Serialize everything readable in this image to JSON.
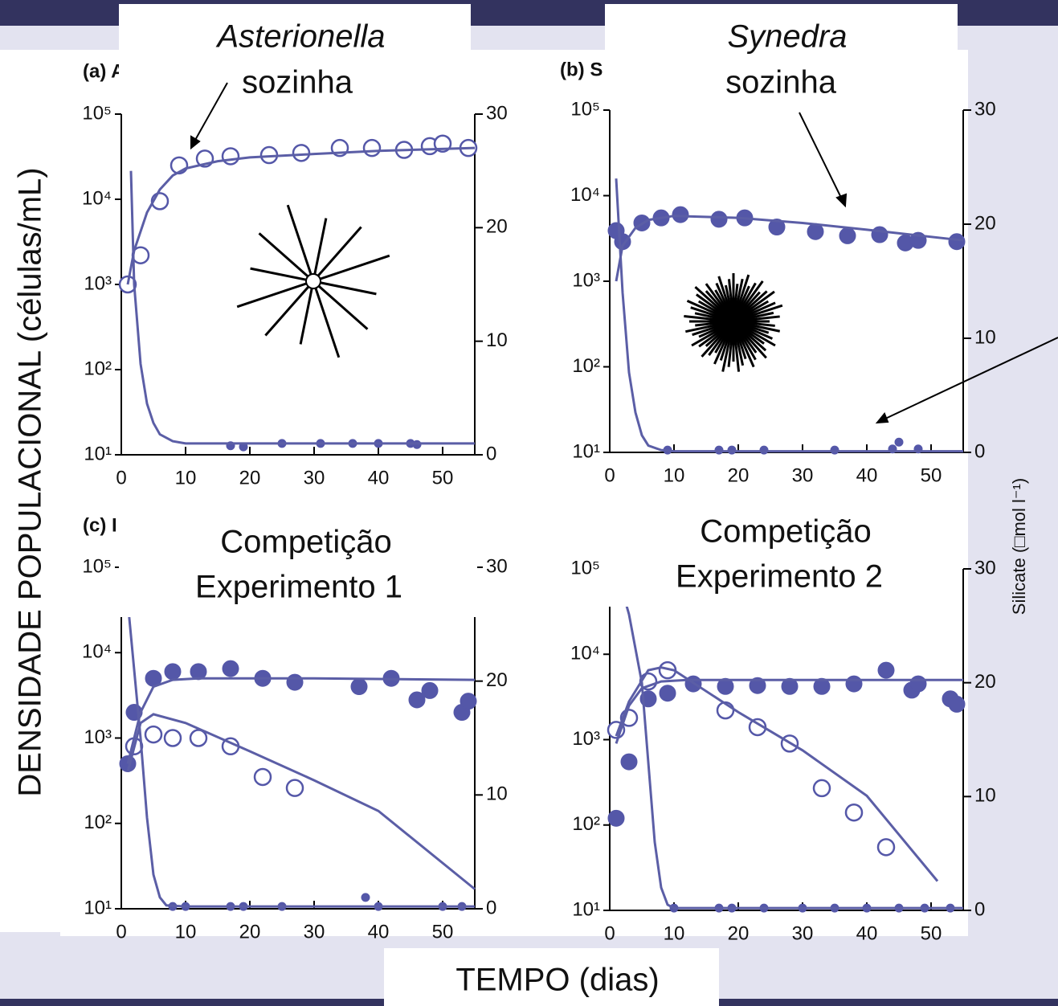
{
  "labels": {
    "y_axis": "DENSIDADE POPULACIONAL (células/mL)",
    "y2_axis": "Silicate (□mol l⁻¹)",
    "x_axis": "TEMPO (dias)"
  },
  "chart_data": [
    {
      "type": "scatter",
      "panel_label": "(a) A",
      "annotation": [
        "Asterionella",
        "sozinha"
      ],
      "log": true,
      "xlim": [
        0,
        55
      ],
      "xticks": [
        0,
        10,
        20,
        30,
        40,
        50
      ],
      "ylim": [
        10,
        100000
      ],
      "yticks": [
        {
          "value": 10,
          "label": "10¹"
        },
        {
          "value": 100,
          "label": "10²"
        },
        {
          "value": 1000,
          "label": "10³"
        },
        {
          "value": 10000,
          "label": "10⁴"
        },
        {
          "value": 100000,
          "label": "10⁵"
        }
      ],
      "y2lim": [
        0,
        30
      ],
      "y2ticks": [
        0,
        10,
        20,
        30
      ],
      "series": [
        {
          "marker": "open",
          "color": "#5457a8",
          "x": [
            1,
            3,
            6,
            9,
            13,
            17,
            23,
            28,
            34,
            39,
            44,
            48,
            50,
            54
          ],
          "values": [
            1000,
            2200,
            9500,
            25000,
            30000,
            32000,
            33000,
            35000,
            40000,
            40000,
            38000,
            42000,
            45000,
            40000
          ]
        },
        {
          "marker": "small",
          "axis": "y2",
          "color": "#5457a8",
          "x": [
            17,
            19,
            25,
            31,
            36,
            40,
            45,
            46
          ],
          "values": [
            0.8,
            0.7,
            1,
            1,
            1,
            1,
            1,
            0.9
          ]
        },
        {
          "marker": "line",
          "color": "#5b5ea6",
          "x": [
            1,
            2,
            4,
            6,
            8,
            10,
            15,
            20,
            30,
            40,
            55
          ],
          "values": [
            1000,
            2500,
            7000,
            13000,
            19000,
            23000,
            28000,
            31000,
            34000,
            37000,
            40000
          ]
        },
        {
          "marker": "line",
          "axis": "y2",
          "color": "#5b5ea6",
          "x": [
            1.5,
            2,
            3,
            4,
            5,
            6,
            8,
            10,
            55
          ],
          "values": [
            25,
            15,
            8,
            4.5,
            2.8,
            1.8,
            1.2,
            1,
            1
          ]
        }
      ]
    },
    {
      "type": "scatter",
      "panel_label": "(b) S",
      "annotation": [
        "Synedra",
        "sozinha"
      ],
      "log": true,
      "xlim": [
        0,
        55
      ],
      "xticks": [
        0,
        10,
        20,
        30,
        40,
        50
      ],
      "ylim": [
        10,
        100000
      ],
      "yticks": [
        {
          "value": 10,
          "label": "10¹"
        },
        {
          "value": 100,
          "label": "10²"
        },
        {
          "value": 1000,
          "label": "10³"
        },
        {
          "value": 10000,
          "label": "10⁴"
        },
        {
          "value": 100000,
          "label": "10⁵"
        }
      ],
      "y2lim": [
        0,
        30
      ],
      "y2ticks": [
        0,
        10,
        20,
        30
      ],
      "series": [
        {
          "marker": "filled",
          "color": "#5457a8",
          "x": [
            1,
            2,
            5,
            8,
            11,
            17,
            21,
            26,
            32,
            37,
            42,
            46,
            48,
            54
          ],
          "values": [
            3900,
            2900,
            4800,
            5500,
            6000,
            5300,
            5500,
            4300,
            3800,
            3400,
            3500,
            2800,
            3000,
            2900
          ]
        },
        {
          "marker": "small",
          "axis": "y2",
          "color": "#5457a8",
          "x": [
            9,
            17,
            19,
            24,
            35,
            44,
            45,
            48
          ],
          "values": [
            0.2,
            0.2,
            0.2,
            0.2,
            0.2,
            0.3,
            0.9,
            0.3
          ]
        },
        {
          "marker": "line",
          "color": "#5b5ea6",
          "x": [
            1,
            2,
            4,
            6,
            10,
            20,
            30,
            40,
            55
          ],
          "values": [
            1000,
            2600,
            4200,
            5200,
            5800,
            5500,
            4800,
            4000,
            3000
          ]
        },
        {
          "marker": "line",
          "axis": "y2",
          "color": "#5b5ea6",
          "x": [
            1,
            2,
            3,
            4,
            5,
            6,
            8,
            10,
            55
          ],
          "values": [
            24,
            14,
            7,
            3.5,
            1.5,
            0.6,
            0.2,
            0.1,
            0.1
          ]
        }
      ]
    },
    {
      "type": "scatter",
      "panel_label": "(c) I",
      "annotation": [
        "Competição",
        "Experimento 1"
      ],
      "log": true,
      "xlim": [
        0,
        55
      ],
      "xticks": [
        0,
        10,
        20,
        30,
        40,
        50
      ],
      "ylim": [
        10,
        100000
      ],
      "yticks": [
        {
          "value": 10,
          "label": "10¹"
        },
        {
          "value": 100,
          "label": "10²"
        },
        {
          "value": 1000,
          "label": "10³"
        },
        {
          "value": 10000,
          "label": "10⁴"
        },
        {
          "value": 100000,
          "label": "10⁵"
        }
      ],
      "y2lim": [
        0,
        30
      ],
      "y2ticks": [
        0,
        10,
        20,
        30
      ],
      "series": [
        {
          "marker": "filled",
          "color": "#5457a8",
          "x": [
            1,
            2,
            5,
            8,
            12,
            17,
            22,
            27,
            37,
            42,
            46,
            48,
            53,
            54
          ],
          "values": [
            500,
            2000,
            5000,
            6000,
            6000,
            6500,
            5000,
            4500,
            4000,
            5000,
            2800,
            3600,
            2000,
            2700
          ]
        },
        {
          "marker": "open",
          "color": "#5457a8",
          "x": [
            2,
            5,
            8,
            12,
            17,
            22,
            27
          ],
          "values": [
            800,
            1100,
            1000,
            1000,
            800,
            350,
            260
          ]
        },
        {
          "marker": "small",
          "axis": "y2",
          "color": "#5457a8",
          "x": [
            8,
            10,
            17,
            19,
            25,
            38,
            40,
            50,
            53
          ],
          "values": [
            0.2,
            0.2,
            0.2,
            0.2,
            0.2,
            1,
            0.2,
            0.2,
            0.2
          ]
        },
        {
          "marker": "line",
          "color": "#5b5ea6",
          "x": [
            1,
            3,
            5,
            8,
            12,
            20,
            30,
            55
          ],
          "values": [
            500,
            2000,
            4000,
            4800,
            5000,
            5000,
            5000,
            4800
          ]
        },
        {
          "marker": "line",
          "color": "#5b5ea6",
          "x": [
            1,
            3,
            5,
            10,
            20,
            30,
            40,
            55
          ],
          "values": [
            400,
            1500,
            1900,
            1500,
            700,
            320,
            140,
            17
          ]
        },
        {
          "marker": "line",
          "axis": "y2",
          "color": "#5b5ea6",
          "x": [
            1,
            3,
            4,
            5,
            6,
            7,
            10,
            55
          ],
          "values": [
            27,
            15,
            8,
            3,
            1,
            0.3,
            0.2,
            0.2
          ]
        }
      ]
    },
    {
      "type": "scatter",
      "annotation": [
        "Competição",
        "Experimento 2"
      ],
      "log": true,
      "xlim": [
        0,
        55
      ],
      "xticks": [
        0,
        10,
        20,
        30,
        40,
        50
      ],
      "ylim": [
        10,
        100000
      ],
      "yticks": [
        {
          "value": 10,
          "label": "10¹"
        },
        {
          "value": 100,
          "label": "10²"
        },
        {
          "value": 1000,
          "label": "10³"
        },
        {
          "value": 10000,
          "label": "10⁴"
        },
        {
          "value": 100000,
          "label": "10⁵"
        }
      ],
      "y2lim": [
        0,
        30
      ],
      "y2ticks": [
        0,
        10,
        20,
        30
      ],
      "series": [
        {
          "marker": "filled",
          "color": "#5457a8",
          "x": [
            1,
            3,
            6,
            9,
            13,
            18,
            23,
            28,
            33,
            38,
            43,
            47,
            48,
            53,
            54
          ],
          "values": [
            120,
            550,
            3000,
            3500,
            4500,
            4200,
            4300,
            4200,
            4200,
            4500,
            6500,
            3800,
            4500,
            3000,
            2600
          ]
        },
        {
          "marker": "open",
          "color": "#5457a8",
          "x": [
            1,
            3,
            6,
            9,
            18,
            23,
            28,
            33,
            38,
            43
          ],
          "values": [
            1300,
            1800,
            4800,
            6500,
            2200,
            1400,
            900,
            270,
            140,
            55
          ]
        },
        {
          "marker": "small",
          "axis": "y2",
          "color": "#5457a8",
          "x": [
            10,
            17,
            19,
            24,
            30,
            35,
            40,
            45,
            49,
            53
          ],
          "values": [
            0.2,
            0.2,
            0.2,
            0.2,
            0.2,
            0.2,
            0.2,
            0.2,
            0.2,
            0.2
          ]
        },
        {
          "marker": "line",
          "color": "#5b5ea6",
          "x": [
            1,
            3,
            5,
            8,
            12,
            20,
            40,
            55
          ],
          "values": [
            900,
            2500,
            4000,
            4800,
            5000,
            5000,
            5000,
            5000
          ]
        },
        {
          "marker": "line",
          "color": "#5b5ea6",
          "x": [
            1,
            3,
            6,
            8,
            10,
            20,
            30,
            40,
            51
          ],
          "values": [
            1100,
            2800,
            6500,
            7000,
            6500,
            2100,
            750,
            220,
            22
          ]
        },
        {
          "marker": "line",
          "axis": "y2",
          "color": "#5b5ea6",
          "x": [
            1,
            3,
            5,
            6,
            7,
            8,
            9,
            10,
            55
          ],
          "values": [
            30,
            26,
            20,
            13,
            6,
            2,
            0.5,
            0.2,
            0.2
          ]
        }
      ]
    }
  ]
}
